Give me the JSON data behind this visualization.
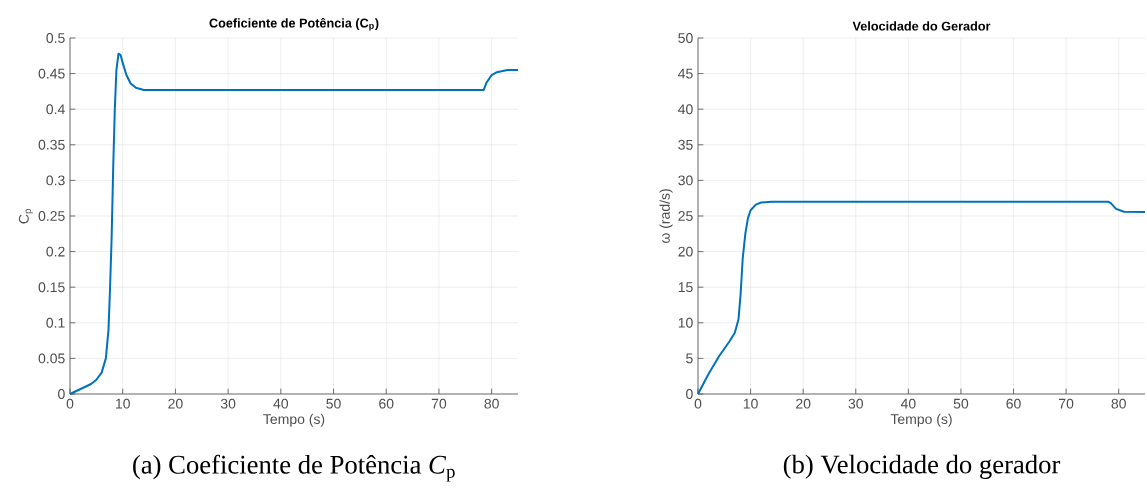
{
  "chart_data": [
    {
      "type": "line",
      "title": "Coeficiente de Potência (C$_{p}$)",
      "xlabel": "Tempo (s)",
      "ylabel": "C$_{p}$",
      "annotations": [
        "(a) Coeficiente de Potência *C*$_{p}$"
      ],
      "x": [
        0,
        2,
        4,
        5,
        6,
        6.8,
        7.3,
        7.6,
        7.9,
        8.2,
        8.5,
        8.8,
        9.2,
        9.6,
        10,
        10.7,
        11.5,
        12.5,
        14,
        20,
        40,
        60,
        78.5,
        79,
        80,
        81,
        83,
        85
      ],
      "series": [
        {
          "color": "#0072bd",
          "values": [
            0,
            0.007,
            0.014,
            0.02,
            0.03,
            0.05,
            0.09,
            0.15,
            0.22,
            0.32,
            0.4,
            0.455,
            0.478,
            0.476,
            0.465,
            0.448,
            0.436,
            0.43,
            0.427,
            0.427,
            0.427,
            0.427,
            0.427,
            0.437,
            0.448,
            0.452,
            0.455,
            0.455
          ]
        }
      ],
      "xlim": [
        0,
        85
      ],
      "ylim": [
        0,
        0.5
      ],
      "xticks": [
        0,
        10,
        20,
        30,
        40,
        50,
        60,
        70,
        80
      ],
      "yticks": [
        0,
        0.05,
        0.1,
        0.15,
        0.2,
        0.25,
        0.3,
        0.35,
        0.4,
        0.45,
        0.5
      ],
      "grid": true
    },
    {
      "type": "line",
      "title": "Velocidade do Gerador",
      "xlabel": "Tempo (s)",
      "ylabel": "ω (rad/s)",
      "annotations": [
        "(b) Velocidade do gerador"
      ],
      "x": [
        0,
        2,
        4,
        6,
        7,
        7.7,
        8.1,
        8.5,
        9,
        9.5,
        10,
        11,
        12,
        14,
        30,
        50,
        78,
        78.5,
        79.5,
        81,
        85
      ],
      "series": [
        {
          "color": "#0072bd",
          "values": [
            0,
            2.8,
            5.3,
            7.4,
            8.6,
            10.5,
            14,
            19,
            22.5,
            24.7,
            25.8,
            26.6,
            26.9,
            27,
            27,
            27,
            27,
            26.8,
            26,
            25.6,
            25.55
          ]
        }
      ],
      "xlim": [
        0,
        85
      ],
      "ylim": [
        0,
        50
      ],
      "xticks": [
        0,
        10,
        20,
        30,
        40,
        50,
        60,
        70,
        80
      ],
      "yticks": [
        0,
        5,
        10,
        15,
        20,
        25,
        30,
        35,
        40,
        45,
        50
      ],
      "grid": true
    }
  ]
}
